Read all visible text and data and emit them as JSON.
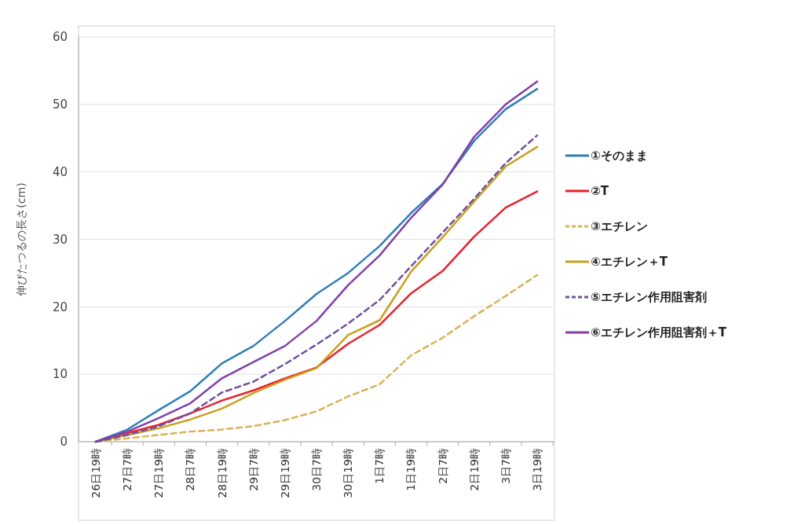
{
  "chart_data": {
    "type": "line",
    "ylabel": "伸びたつるの長さ(cm)",
    "categories": [
      "26日19時",
      "27日7時",
      "27日19時",
      "28日7時",
      "28日19時",
      "29日7時",
      "29日19時",
      "30日7時",
      "30日19時",
      "1日7時",
      "1日19時",
      "2日7時",
      "2日19時",
      "3日7時",
      "3日19時"
    ],
    "ylim": [
      0,
      60
    ],
    "yticks": [
      0,
      10,
      20,
      30,
      40,
      50,
      60
    ],
    "grid": "y",
    "legend": "right",
    "marker": "none",
    "series": [
      {
        "name": "①そのまま",
        "color": "#2e7fb8",
        "line_style": "solid",
        "values": [
          0,
          1.8,
          4.7,
          7.5,
          11.6,
          14.2,
          17.9,
          21.9,
          25,
          29,
          33.9,
          38.2,
          44.6,
          49.3,
          52.3
        ]
      },
      {
        "name": "②T",
        "color": "#e8202a",
        "line_style": "solid",
        "values": [
          0,
          1.3,
          2.5,
          4.2,
          6.1,
          7.6,
          9.4,
          11,
          14.5,
          17.3,
          22,
          25.3,
          30.4,
          34.7,
          37.1
        ]
      },
      {
        "name": "③エチレン",
        "color": "#d9b35a",
        "line_style": "dashed",
        "values": [
          0,
          0.5,
          1,
          1.5,
          1.8,
          2.3,
          3.2,
          4.5,
          6.7,
          8.5,
          12.8,
          15.4,
          18.6,
          21.6,
          24.7
        ]
      },
      {
        "name": "④エチレン＋T",
        "color": "#c8a020",
        "line_style": "solid",
        "values": [
          0,
          1,
          2,
          3.3,
          4.9,
          7.2,
          9.2,
          10.9,
          15.8,
          18,
          25.2,
          30.3,
          35.6,
          40.8,
          43.7
        ]
      },
      {
        "name": "⑤エチレン作用阻害剤",
        "color": "#7050a0",
        "line_style": "dashed",
        "values": [
          0,
          1,
          2.3,
          4.2,
          7.3,
          8.9,
          11.5,
          14.4,
          17.5,
          21,
          26,
          31,
          36,
          41.3,
          45.4
        ]
      },
      {
        "name": "⑥エチレン作用阻害剤＋T",
        "color": "#8040a8",
        "line_style": "solid",
        "values": [
          0,
          1.5,
          3.5,
          5.7,
          9.4,
          11.8,
          14.2,
          17.9,
          23.2,
          27.6,
          33.2,
          38.1,
          45.2,
          50,
          53.4
        ]
      }
    ]
  }
}
